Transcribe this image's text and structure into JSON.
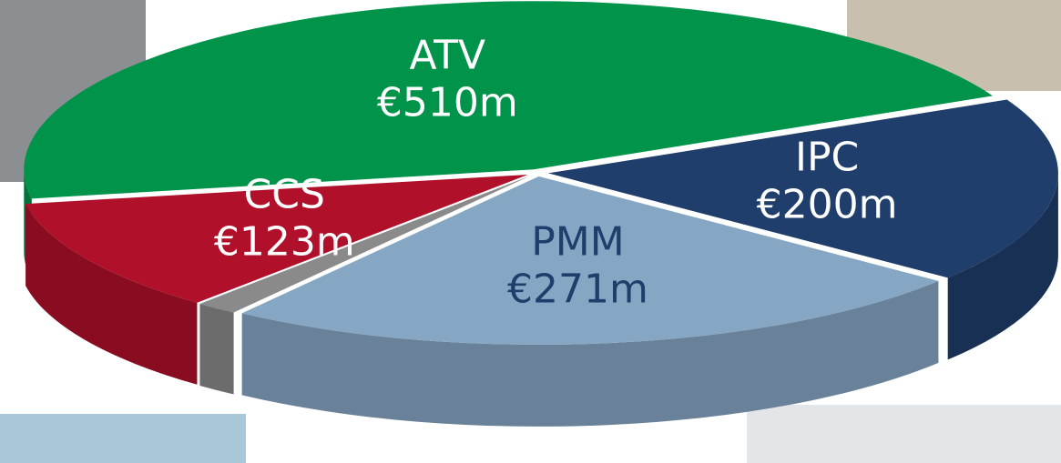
{
  "chart_data": {
    "type": "pie3d",
    "categories": [
      "ATV",
      "IPC",
      "PMM",
      null,
      "CCS"
    ],
    "values": [
      510,
      200,
      271,
      15,
      123
    ],
    "value_labels": [
      "€510m",
      "€200m",
      "€271m",
      null,
      "€123m"
    ],
    "colors": [
      "#00934a",
      "#1f3e6b",
      "#86a7c4",
      "#8a8a8a",
      "#b0102a"
    ]
  }
}
